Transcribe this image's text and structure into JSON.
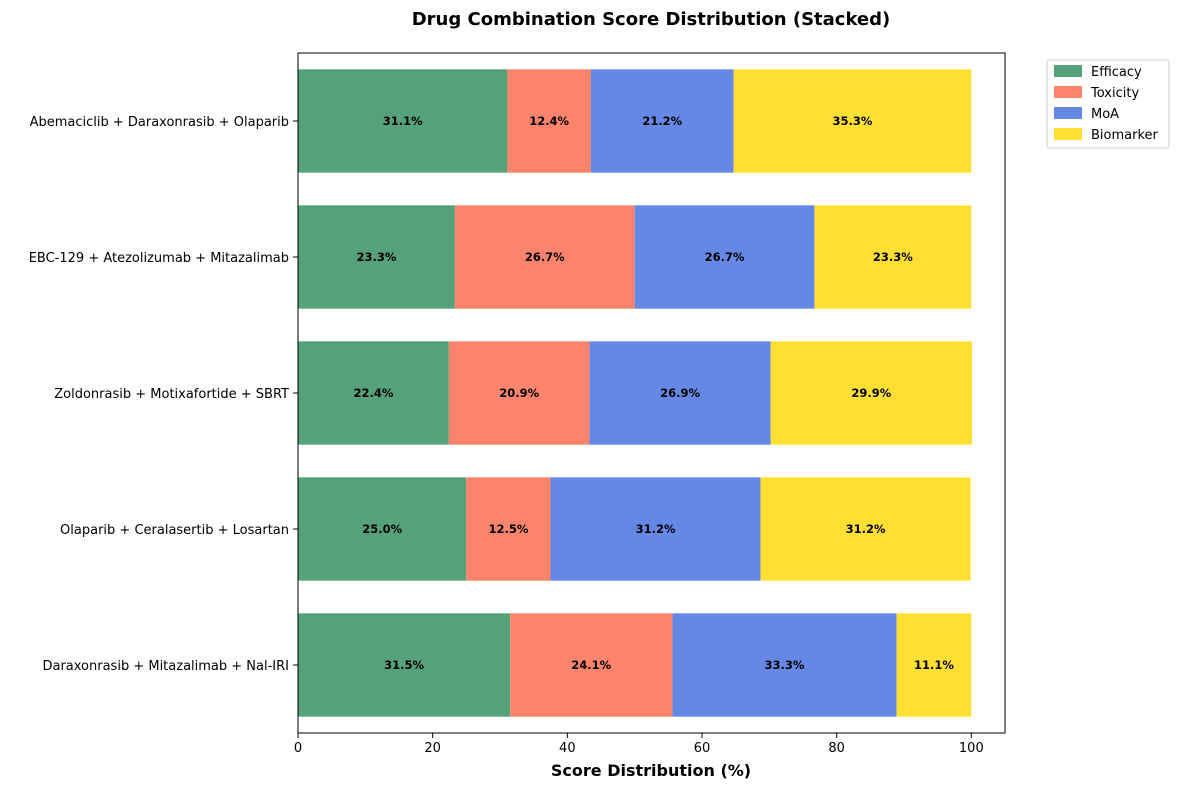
{
  "chart_data": {
    "type": "bar",
    "orientation": "horizontal",
    "stacked": true,
    "title": "Drug Combination Score Distribution (Stacked)",
    "xlabel": "Score Distribution (%)",
    "ylabel": "",
    "xlim": [
      0,
      105
    ],
    "xticks": [
      0,
      20,
      40,
      60,
      80,
      100
    ],
    "grid": false,
    "legend_position": "top-right outside",
    "categories": [
      "Abemaciclib + Daraxonrasib + Olaparib",
      "EBC-129 + Atezolizumab + Mitazalimab",
      "Zoldonrasib + Motixafortide + SBRT",
      "Olaparib + Ceralasertib + Losartan",
      "Daraxonrasib + Mitazalimab + Nal-IRI"
    ],
    "series": [
      {
        "name": "Efficacy",
        "color": "#55a17a",
        "values": [
          31.1,
          23.3,
          22.4,
          25.0,
          31.5
        ]
      },
      {
        "name": "Toxicity",
        "color": "#fc846c",
        "values": [
          12.4,
          26.7,
          20.9,
          12.5,
          24.1
        ]
      },
      {
        "name": "MoA",
        "color": "#6688e5",
        "values": [
          21.2,
          26.7,
          26.9,
          31.2,
          33.3
        ]
      },
      {
        "name": "Biomarker",
        "color": "#fedf32",
        "values": [
          35.3,
          23.3,
          29.9,
          31.2,
          11.1
        ]
      }
    ]
  }
}
